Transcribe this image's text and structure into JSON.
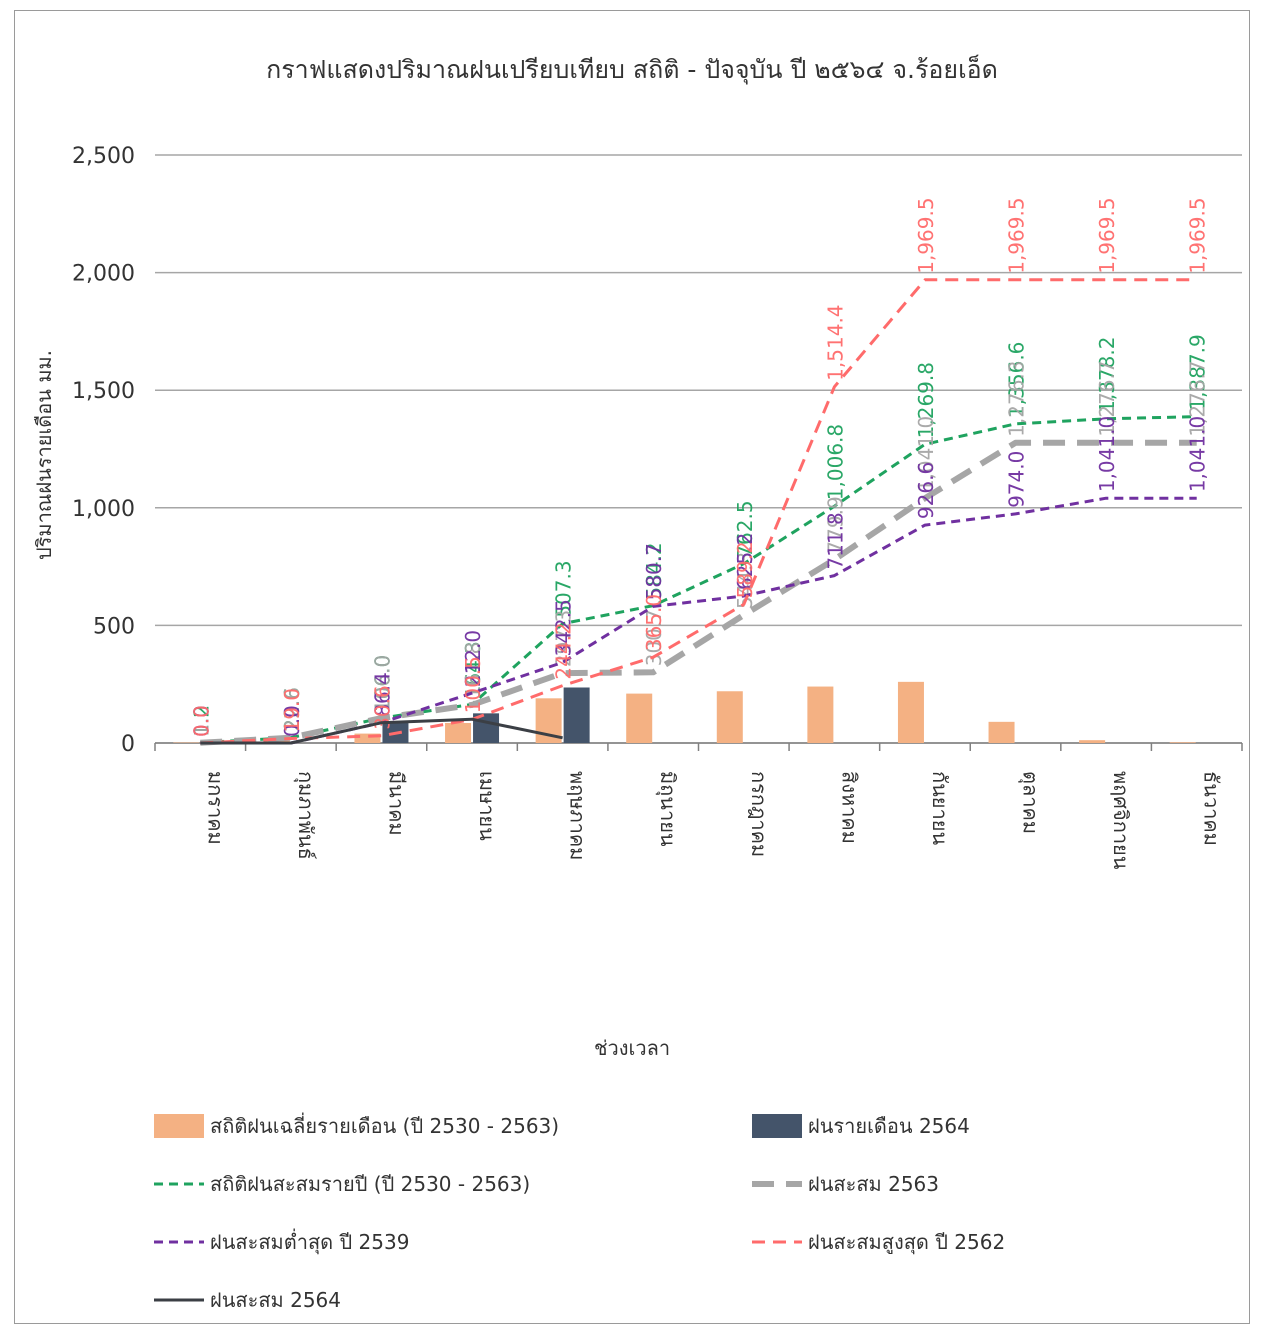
{
  "chart_data": {
    "type": "bar",
    "title": "กราฟแสดงปริมาณฝนเปรียบเทียบ  สถิติ - ปัจจุบัน ปี ๒๕๖๔ จ.ร้อยเอ็ด",
    "xlabel": "ช่วงเวลา",
    "ylabel": "ปริมาณฝนรายเดือน  มม.",
    "ylim": [
      0,
      2500
    ],
    "yticks": [
      "0",
      "500",
      "1,000",
      "1,500",
      "2,000",
      "2,500"
    ],
    "grid": true,
    "legend_position": "bottom",
    "categories": [
      "มกราคม",
      "กุมภาพันธ์",
      "มีนาคม",
      "เมษายน",
      "พฤษภาคม",
      "มิถุนายน",
      "กรกฎาคม",
      "สิงหาคม",
      "กันยายน",
      "ตุลาคม",
      "พฤศจิกายน",
      "ธันวาคม"
    ],
    "series": [
      {
        "name": "สถิติฝนเฉลี่ยรายเดือน (ปี 2530 - 2563)",
        "kind": "bar",
        "color": "#f4b183",
        "values": [
          2,
          10,
          40,
          85,
          190,
          210,
          220,
          240,
          260,
          90,
          12,
          3
        ]
      },
      {
        "name": "ฝนรายเดือน 2564",
        "kind": "bar",
        "color": "#44546a",
        "values": [
          0.0,
          0.0,
          86.4,
          126.1,
          236.0,
          null,
          null,
          null,
          null,
          null,
          null,
          null
        ]
      },
      {
        "name": "สถิติฝนสะสมรายปี (ปี 2530 - 2563)",
        "kind": "line",
        "dash": "short",
        "color": "#1fa35f",
        "values": [
          1.2,
          22.6,
          106.0,
          164.3,
          507.3,
          584.2,
          762.5,
          1006.8,
          1269.8,
          1356.6,
          1378.2,
          1387.9
        ],
        "labels": [
          "1.2",
          "22.6",
          "106.0",
          "164.3",
          "507.3",
          "584.2",
          "762.5",
          "1,006.8",
          "1,269.8",
          "1,356.6",
          "1,378.2",
          "1,387.9"
        ]
      },
      {
        "name": "ฝนสะสม 2563",
        "kind": "line",
        "dash": "long",
        "color": "#a6a6a6",
        "values": [
          1.0,
          22.6,
          106.0,
          161.8,
          297.3,
          300.7,
          544.3,
          779.9,
          1041.0,
          1276.3,
          1276.7,
          1276.7
        ],
        "labels": [
          "1.0",
          "22.6",
          "106.0",
          "161.8",
          "297.3",
          "300.7",
          "544.3",
          "779.9",
          "1,041.0",
          "1,276.3",
          "1,276.7",
          "1,276.7"
        ]
      },
      {
        "name": "ฝนสะสมต่ำสุด ปี 2539",
        "kind": "line",
        "dash": "short",
        "color": "#7030a0",
        "values": [
          0.0,
          0.0,
          86.4,
          212.0,
          342.5,
          580.7,
          625.2,
          711.8,
          926.6,
          974.0,
          1041.0,
          1041.0
        ],
        "labels": [
          "0.0",
          "0.0",
          "86.4",
          "212.0",
          "342.5",
          "580.7",
          "625.2",
          "711.8",
          "926.6",
          "974.0",
          "1,041.0",
          "1,041.0"
        ]
      },
      {
        "name": "ฝนสะสมสูงสุด ปี 2562",
        "kind": "line",
        "dash": "medium",
        "color": "#ff6b6b",
        "values": [
          0.0,
          19.0,
          30.6,
          100.5,
          244.2,
          365.0,
          589.2,
          1514.4,
          1969.5,
          1969.5,
          1969.5,
          1969.5
        ],
        "labels": [
          "0.0",
          "19.0",
          "30.6",
          "100.5",
          "244.2",
          "365.0",
          "589.2",
          "1,514.4",
          "1,969.5",
          "1,969.5",
          "1,969.5",
          "1,969.5"
        ]
      },
      {
        "name": "ฝนสะสม 2564",
        "kind": "line",
        "dash": "solid",
        "color": "#3b3f45",
        "values": [
          0.0,
          0.0,
          86.4,
          101.0,
          22.0,
          null,
          null,
          null,
          null,
          null,
          null,
          null
        ]
      }
    ]
  }
}
